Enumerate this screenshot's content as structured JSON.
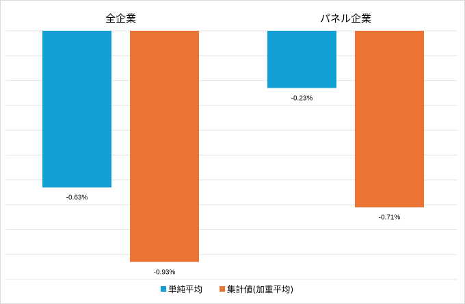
{
  "chart_data": {
    "type": "bar",
    "categories": [
      "全企業",
      "パネル企業"
    ],
    "series": [
      {
        "name": "単純平均",
        "values": [
          -0.63,
          -0.23
        ],
        "labels": [
          "-0.63%",
          "-0.23%"
        ],
        "color": "#119fd6"
      },
      {
        "name": "集計値(加重平均)",
        "values": [
          -0.93,
          -0.71
        ],
        "labels": [
          "-0.93%",
          "-0.71%"
        ],
        "color": "#eb7333"
      }
    ],
    "title": "",
    "xlabel": "",
    "ylabel": "",
    "ylim": [
      -1.0,
      0.0
    ],
    "grid": true,
    "gridline_color": "#e3e3e3",
    "legend_position": "bottom"
  }
}
